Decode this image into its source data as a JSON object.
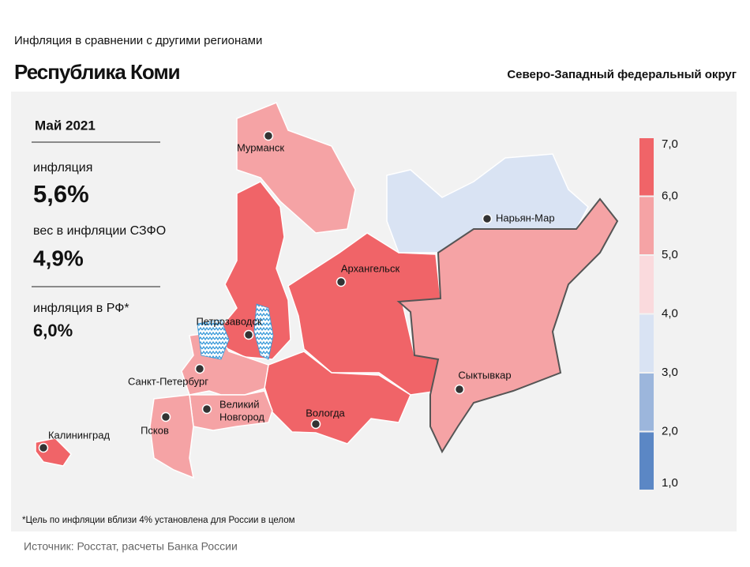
{
  "header": {
    "subtitle": "Инфляция  в сравнении  с другими  регионами",
    "title": "Республика Коми",
    "district": "Северо-Западный федеральный округ"
  },
  "panel": {
    "period": "Май 2021",
    "inflation_label": "инфляция",
    "inflation_value": "5,6%",
    "weight_label": "вес в инфляции  СЗФО",
    "weight_value": "4,9%",
    "rf_label": "инфляция  в РФ*",
    "rf_value": "6,0%"
  },
  "legend": {
    "ticks": [
      "7,0",
      "6,0",
      "5,0",
      "4,0",
      "3,0",
      "2,0",
      "1,0"
    ],
    "colors": [
      "#f06468",
      "#f5a3a5",
      "#fadadd",
      "#d9e3f3",
      "#9cb6dc",
      "#5b87c5"
    ]
  },
  "regions": [
    {
      "label": [
        "Мурманск"
      ],
      "color": "#f5a3a5"
    },
    {
      "label": [
        "Петрозаводск"
      ],
      "color": "#f06468"
    },
    {
      "label": [
        "Архангельск"
      ],
      "color": "#f06468"
    },
    {
      "label": [
        "Вологда"
      ],
      "color": "#f06468"
    },
    {
      "label": [
        "Нарьян-Мар"
      ],
      "color": "#d9e3f3"
    },
    {
      "label": [
        "Сыктывкар"
      ],
      "color": "#f5a3a5"
    },
    {
      "label": [
        "Санкт-Петербург"
      ],
      "color": "#f5a3a5"
    },
    {
      "label": [
        "Великий",
        "Новгород"
      ],
      "color": "#f5a3a5"
    },
    {
      "label": [
        "Псков"
      ],
      "color": "#f5a3a5"
    },
    {
      "label": [
        "Калининград"
      ],
      "color": "#f06468"
    }
  ],
  "footnote": "*Цель по инфляции вблизи 4% установлена для России в целом",
  "source": "Источник: Росстат, расчеты Банка России"
}
